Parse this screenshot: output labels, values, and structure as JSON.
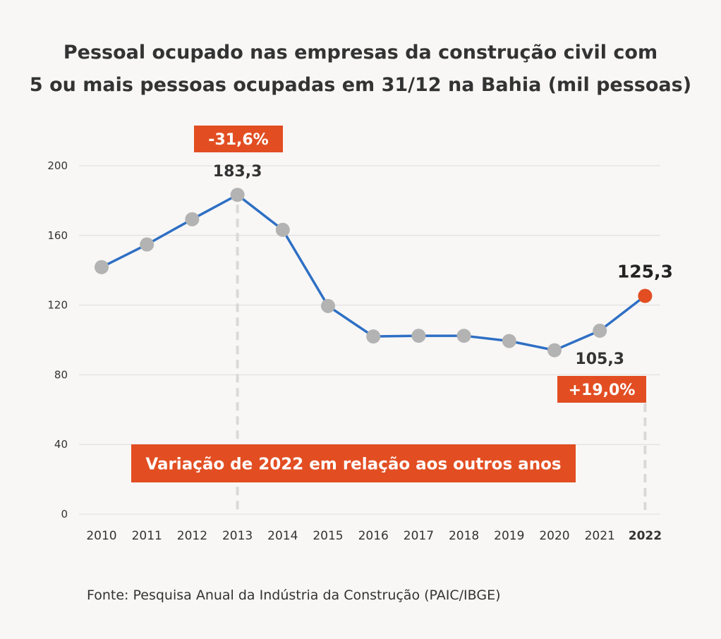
{
  "title_line1": "Pessoal ocupado nas empresas da construção civil com",
  "title_line2": "5 ou mais pessoas ocupadas em 31/12 na Bahia (mil pessoas)",
  "source": "Fonte: Pesquisa Anual da Indústria da Construção (PAIC/IBGE)",
  "colors": {
    "line": "#2e6fc4",
    "point": "#b3b3b3",
    "highlight": "#e24e22",
    "grid": "#dcdcdc",
    "dash": "#d9d9d9"
  },
  "chart_data": {
    "type": "line",
    "title": "Pessoal ocupado nas empresas da construção civil com 5 ou mais pessoas ocupadas em 31/12 na Bahia (mil pessoas)",
    "xlabel": "",
    "ylabel": "",
    "x": [
      "2010",
      "2011",
      "2012",
      "2013",
      "2014",
      "2015",
      "2016",
      "2017",
      "2018",
      "2019",
      "2020",
      "2021",
      "2022"
    ],
    "values": [
      141.8,
      154.8,
      169.3,
      183.3,
      163.2,
      119.5,
      102.0,
      102.4,
      102.4,
      99.4,
      94.1,
      105.3,
      125.3
    ],
    "ylim": [
      0,
      200
    ],
    "yticks": [
      "0",
      "40",
      "80",
      "120",
      "160",
      "200"
    ],
    "grid": true,
    "highlight_category": "2022",
    "data_labels": {
      "2013": "183,3",
      "2021": "105,3",
      "2022": "125,3"
    },
    "annotations": {
      "change_vs_2013": "-31,6%",
      "change_vs_2021": "+19,0%",
      "banner": "Variação de 2022 em relação aos outros anos"
    }
  }
}
